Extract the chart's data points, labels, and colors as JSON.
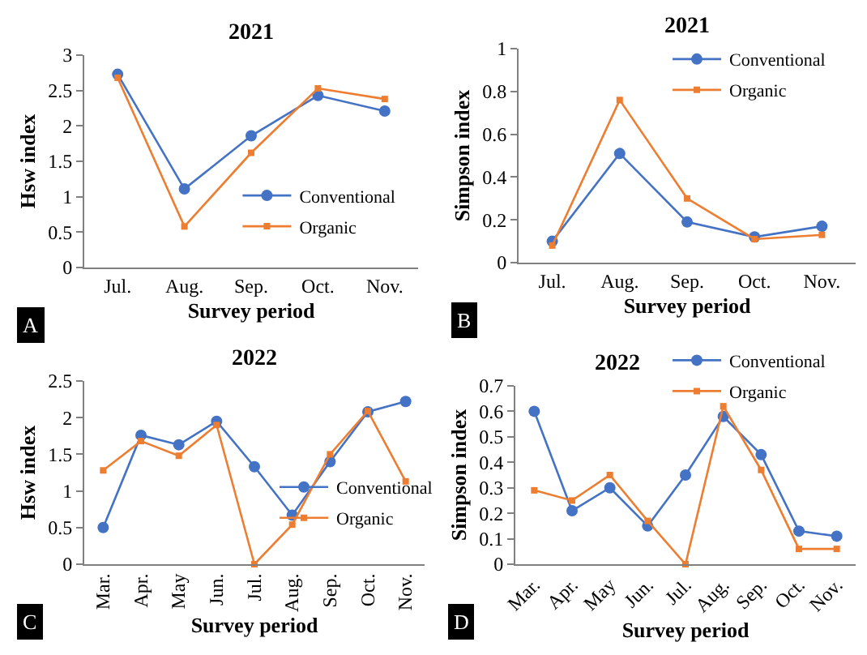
{
  "chart_data": [
    {
      "type": "line",
      "title": "2021",
      "xlabel": "Survey period",
      "ylabel": "Hsw index",
      "categories": [
        "Jul.",
        "Aug.",
        "Sep.",
        "Oct.",
        "Nov."
      ],
      "ylim": [
        0,
        3
      ],
      "yticks": [
        0,
        0.5,
        1,
        1.5,
        2,
        2.5,
        3
      ],
      "legend": "bottom right",
      "annotations": [
        "A"
      ],
      "series": [
        {
          "name": "Conventional",
          "color": "#4472c4",
          "marker": "circle",
          "values": [
            2.73,
            1.11,
            1.86,
            2.43,
            2.21
          ]
        },
        {
          "name": "Organic",
          "color": "#ed7d31",
          "marker": "square",
          "values": [
            2.68,
            0.58,
            1.62,
            2.53,
            2.38
          ]
        }
      ]
    },
    {
      "type": "line",
      "title": "2021",
      "xlabel": "Survey period",
      "ylabel": "Simpson index",
      "categories": [
        "Jul.",
        "Aug.",
        "Sep.",
        "Oct.",
        "Nov."
      ],
      "ylim": [
        0,
        1
      ],
      "yticks": [
        0,
        0.2,
        0.4,
        0.6,
        0.8,
        1
      ],
      "legend": "top right",
      "annotations": [
        "B"
      ],
      "series": [
        {
          "name": "Conventional",
          "color": "#4472c4",
          "marker": "circle",
          "values": [
            0.1,
            0.51,
            0.19,
            0.12,
            0.17
          ]
        },
        {
          "name": "Organic",
          "color": "#ed7d31",
          "marker": "square",
          "values": [
            0.08,
            0.76,
            0.3,
            0.11,
            0.13
          ]
        }
      ]
    },
    {
      "type": "line",
      "title": "2022",
      "xlabel": "Survey period",
      "ylabel": "Hsw index",
      "categories": [
        "Mar.",
        "Apr.",
        "May",
        "Jun.",
        "Jul.",
        "Aug.",
        "Sep.",
        "Oct.",
        "Nov."
      ],
      "ylim": [
        0,
        2.5
      ],
      "yticks": [
        0,
        0.5,
        1,
        1.5,
        2,
        2.5
      ],
      "legend": "right",
      "annotations": [
        "C"
      ],
      "series": [
        {
          "name": "Conventional",
          "color": "#4472c4",
          "marker": "circle",
          "values": [
            0.5,
            1.76,
            1.63,
            1.95,
            1.33,
            0.67,
            1.4,
            2.08,
            2.22
          ]
        },
        {
          "name": "Organic",
          "color": "#ed7d31",
          "marker": "square",
          "values": [
            1.28,
            1.68,
            1.48,
            1.9,
            0.0,
            0.54,
            1.5,
            2.09,
            1.13
          ]
        }
      ]
    },
    {
      "type": "line",
      "title": "2022",
      "xlabel": "Survey period",
      "ylabel": "Simpson index",
      "categories": [
        "Mar.",
        "Apr.",
        "May",
        "Jun.",
        "Jul.",
        "Aug.",
        "Sep.",
        "Oct.",
        "Nov."
      ],
      "ylim": [
        0,
        0.7
      ],
      "yticks": [
        0,
        0.1,
        0.2,
        0.3,
        0.4,
        0.5,
        0.6,
        0.7
      ],
      "legend": "top right",
      "annotations": [
        "D"
      ],
      "series": [
        {
          "name": "Conventional",
          "color": "#4472c4",
          "marker": "circle",
          "values": [
            0.6,
            0.21,
            0.3,
            0.15,
            0.35,
            0.58,
            0.43,
            0.13,
            0.11
          ]
        },
        {
          "name": "Organic",
          "color": "#ed7d31",
          "marker": "square",
          "values": [
            0.29,
            0.25,
            0.35,
            0.17,
            0.0,
            0.62,
            0.37,
            0.06,
            0.06
          ]
        }
      ]
    }
  ]
}
